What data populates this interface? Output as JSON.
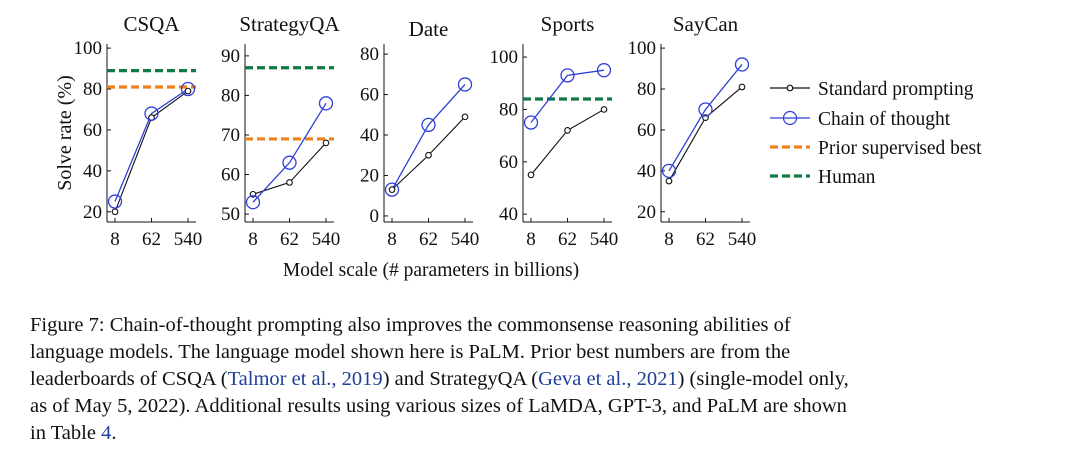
{
  "chart_data": {
    "type": "line",
    "shared_xlabel": "Model scale (# parameters in billions)",
    "shared_ylabel": "Solve rate (%)",
    "x_categories": [
      "8",
      "62",
      "540"
    ],
    "legend": {
      "placement": "right",
      "entries": [
        {
          "key": "standard",
          "label": "Standard prompting",
          "color": "#111111",
          "style": "line-small-circle"
        },
        {
          "key": "cot",
          "label": "Chain of thought",
          "color": "#2f3fd6",
          "style": "line-large-circle"
        },
        {
          "key": "prior",
          "label": "Prior supervised best",
          "color": "#f07f1c",
          "style": "dashed"
        },
        {
          "key": "human",
          "label": "Human",
          "color": "#0e7a45",
          "style": "dashed"
        }
      ]
    },
    "panels": [
      {
        "title": "CSQA",
        "ylim": [
          15,
          102
        ],
        "yticks": [
          20,
          40,
          60,
          80,
          100
        ],
        "series": {
          "standard": [
            20,
            66,
            79
          ],
          "cot": [
            25,
            68,
            80
          ]
        },
        "prior": 81,
        "human": 89
      },
      {
        "title": "StrategyQA",
        "ylim": [
          48,
          93
        ],
        "yticks": [
          50,
          60,
          70,
          80,
          90
        ],
        "series": {
          "standard": [
            55,
            58,
            68
          ],
          "cot": [
            53,
            63,
            78
          ]
        },
        "prior": 69,
        "human": 87
      },
      {
        "title": "Date",
        "ylim": [
          -3,
          85
        ],
        "yticks": [
          0,
          20,
          40,
          60,
          80
        ],
        "series": {
          "standard": [
            13,
            30,
            49
          ],
          "cot": [
            13,
            45,
            65
          ]
        }
      },
      {
        "title": "Sports",
        "ylim": [
          37,
          105
        ],
        "yticks": [
          40,
          60,
          80,
          100
        ],
        "series": {
          "standard": [
            55,
            72,
            80
          ],
          "cot": [
            75,
            93,
            95
          ]
        },
        "human": 84
      },
      {
        "title": "SayCan",
        "ylim": [
          15,
          102
        ],
        "yticks": [
          20,
          40,
          60,
          80,
          100
        ],
        "series": {
          "standard": [
            35,
            66,
            81
          ],
          "cot": [
            40,
            70,
            92
          ]
        }
      }
    ]
  },
  "caption": {
    "lines": [
      [
        {
          "t": "Figure 7:   Chain-of-thought prompting also improves the commonsense reasoning abilities of"
        }
      ],
      [
        {
          "t": "language models.  The language model shown here is PaLM. Prior best numbers are from the"
        }
      ],
      [
        {
          "t": "leaderboards of CSQA ("
        },
        {
          "t": "Talmor et al., 2019",
          "link": true
        },
        {
          "t": ") and StrategyQA ("
        },
        {
          "t": "Geva et al., 2021",
          "link": true
        },
        {
          "t": ") (single-model only,"
        }
      ],
      [
        {
          "t": "as of May 5, 2022). Additional results using various sizes of LaMDA, GPT-3, and PaLM are shown"
        }
      ],
      [
        {
          "t": "in Table "
        },
        {
          "t": "4",
          "link": true
        },
        {
          "t": "."
        }
      ]
    ]
  }
}
